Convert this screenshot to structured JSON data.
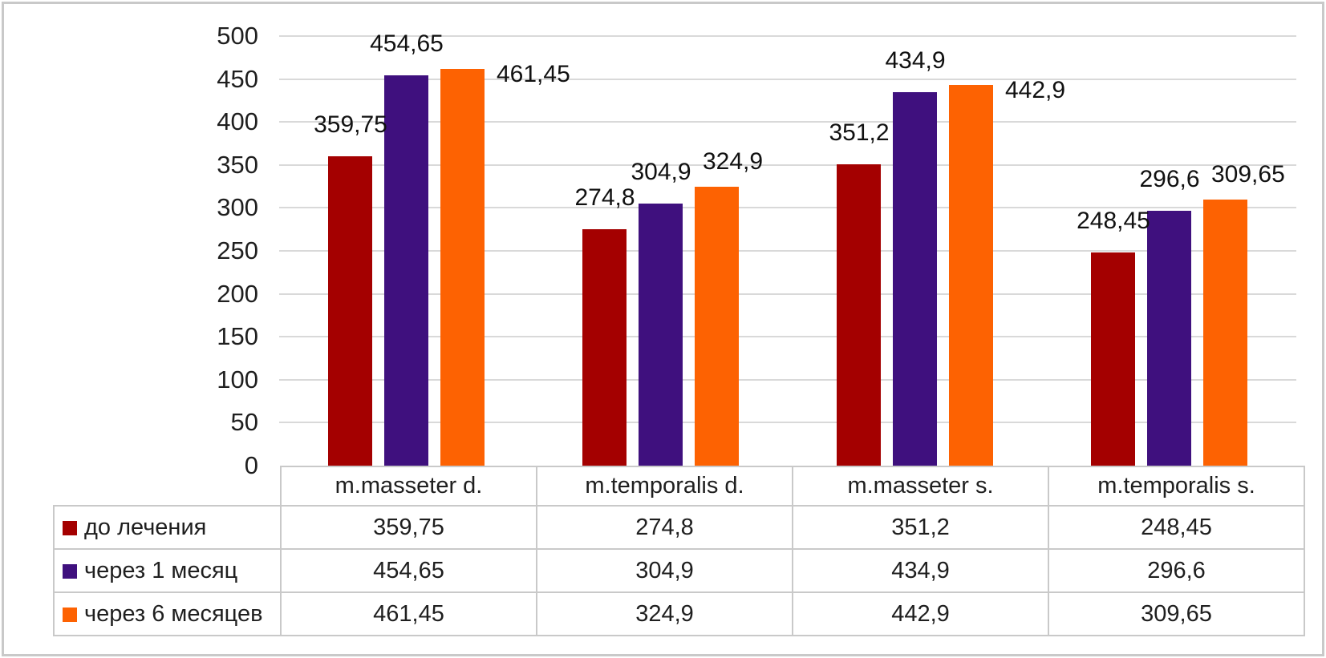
{
  "chart_data": {
    "type": "bar",
    "title": "",
    "xlabel": "",
    "ylabel": "",
    "categories": [
      "m.masseter d.",
      "m.temporalis d.",
      "m.masseter s.",
      "m.temporalis s."
    ],
    "series": [
      {
        "name": "до лечения",
        "color": "#a40000",
        "values": [
          359.75,
          274.8,
          351.2,
          248.45
        ],
        "display": [
          "359,75",
          "274,8",
          "351,2",
          "248,45"
        ]
      },
      {
        "name": "через 1 месяц",
        "color": "#3f107e",
        "values": [
          454.65,
          304.9,
          434.9,
          296.6
        ],
        "display": [
          "454,65",
          "304,9",
          "434,9",
          "296,6"
        ]
      },
      {
        "name": "через 6 месяцев",
        "color": "#fd6202",
        "values": [
          461.45,
          324.9,
          442.9,
          309.65
        ],
        "display": [
          "461,45",
          "324,9",
          "442,9",
          "309,65"
        ]
      }
    ],
    "y_axis": {
      "min": 0,
      "max": 500,
      "step": 50,
      "tick_labels": [
        "500",
        "450",
        "400",
        "350",
        "300",
        "250",
        "200",
        "150",
        "100",
        "50",
        "0"
      ]
    },
    "grid": true,
    "decimal_separator": ",",
    "data_labels": true,
    "legend_position": "data-table-left",
    "data_table_shown": true
  }
}
